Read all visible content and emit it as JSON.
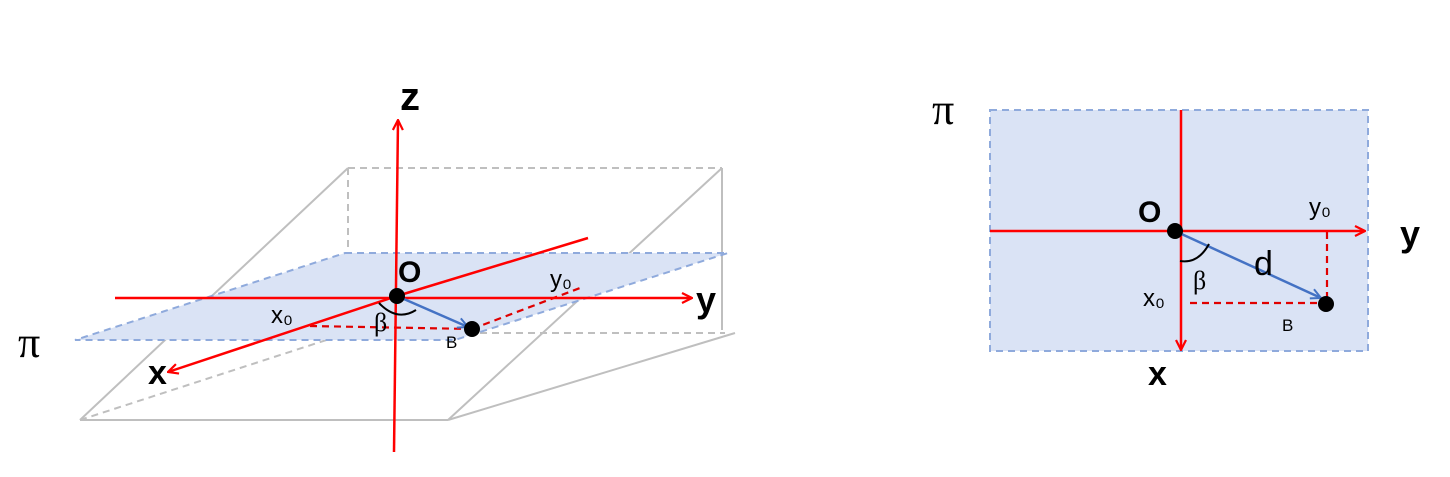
{
  "colors": {
    "axis": "#ff0000",
    "plane_fill": "#dae3f5",
    "plane_edge": "#8faadc",
    "vector": "#4472c4",
    "box": "#bfbfbf",
    "dashed_red": "#e00000",
    "point": "#000000"
  },
  "left_diagram": {
    "axis_z": "z",
    "axis_y": "y",
    "axis_x": "x",
    "origin": "O",
    "plane": "π",
    "x0": "x₀",
    "y0": "y₀",
    "angle": "β",
    "point": "B"
  },
  "right_diagram": {
    "plane": "π",
    "origin": "O",
    "axis_y": "y",
    "axis_x": "x",
    "x0": "x₀",
    "y0": "y₀",
    "angle": "β",
    "distance": "d",
    "point": "B"
  }
}
